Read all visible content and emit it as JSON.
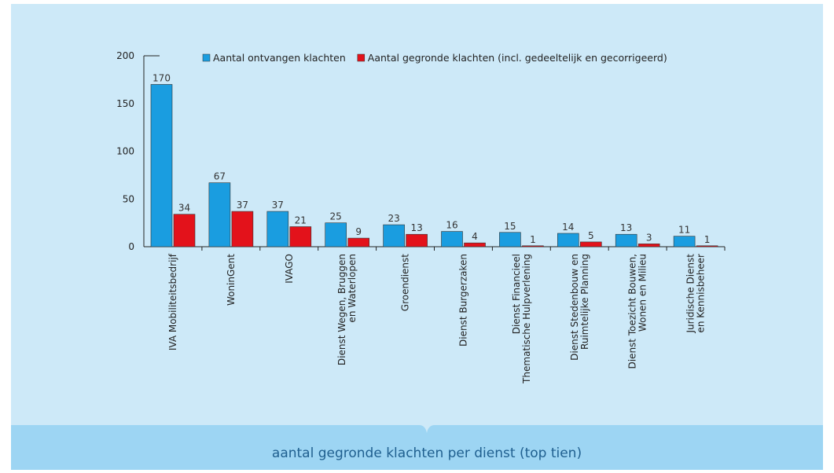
{
  "chart_data": {
    "type": "bar",
    "title": "aantal gegronde klachten per dienst (top tien)",
    "categories": [
      [
        "IVA Mobiliteitsbedrijf"
      ],
      [
        "WoninGent"
      ],
      [
        "IVAGO"
      ],
      [
        "Dienst Wegen, Bruggen",
        "en Waterlopen"
      ],
      [
        "Groendienst"
      ],
      [
        "Dienst Burgerzaken"
      ],
      [
        "Dienst Financieel",
        "Thematische Hulpverlening"
      ],
      [
        "Dienst Stedenbouw en",
        "Ruimtelijke Planning"
      ],
      [
        "Dienst Toezicht Bouwen,",
        "Wonen en Milieu"
      ],
      [
        "Juridische Dienst",
        "en Kennisbeheer"
      ]
    ],
    "series": [
      {
        "name": "Aantal ontvangen klachten",
        "color": "#1a9de0",
        "values": [
          170,
          67,
          37,
          25,
          23,
          16,
          15,
          14,
          13,
          11
        ]
      },
      {
        "name": "Aantal gegronde klachten (incl. gedeeltelijk en gecorrigeerd)",
        "color": "#e3121b",
        "values": [
          34,
          37,
          21,
          9,
          13,
          4,
          1,
          5,
          3,
          1
        ]
      }
    ],
    "ylim": [
      0,
      200
    ],
    "yticks": [
      0,
      50,
      100,
      150,
      200
    ],
    "legend": "top"
  }
}
